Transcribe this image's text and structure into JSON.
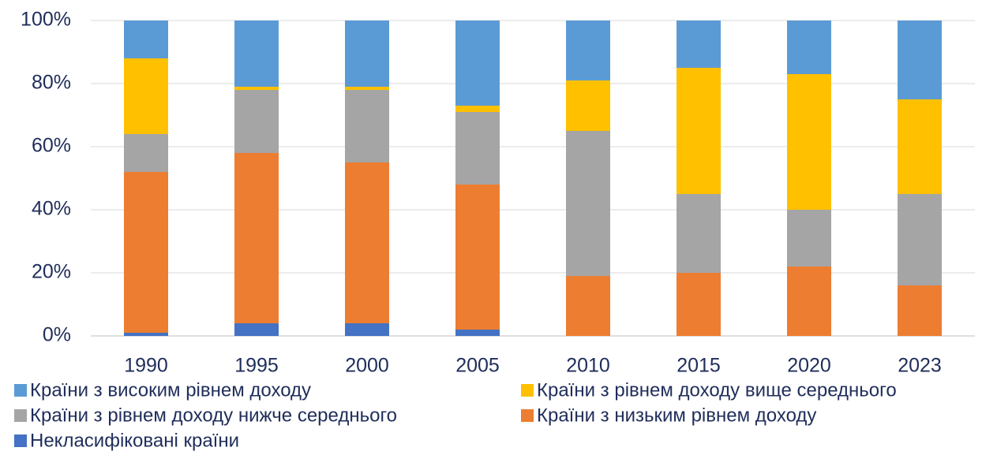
{
  "chart_data": {
    "type": "stacked_bar",
    "categories": [
      "1990",
      "1995",
      "2000",
      "2005",
      "2010",
      "2015",
      "2020",
      "2023"
    ],
    "series": [
      {
        "name": "Країни з високим рівнем доходу",
        "color": "#5b9bd5",
        "values": [
          12,
          21,
          21,
          27,
          19,
          15,
          17,
          25
        ]
      },
      {
        "name": "Країни з рівнем доходу вище середнього",
        "color": "#ffc000",
        "values": [
          24,
          1,
          1,
          2,
          16,
          40,
          43,
          30
        ]
      },
      {
        "name": "Країни з рівнем доходу нижче середнього",
        "color": "#a5a5a5",
        "values": [
          12,
          20,
          23,
          23,
          46,
          25,
          18,
          29
        ]
      },
      {
        "name": "Країни з низьким рівнем доходу",
        "color": "#ed7d31",
        "values": [
          51,
          54,
          51,
          46,
          19,
          20,
          22,
          16
        ]
      },
      {
        "name": "Некласифіковані країни",
        "color": "#4472c4",
        "values": [
          1,
          4,
          4,
          2,
          0,
          0,
          0,
          0
        ]
      }
    ],
    "ylim": [
      0,
      100
    ],
    "yticks": [
      {
        "value": 0,
        "label": "0%"
      },
      {
        "value": 20,
        "label": "20%"
      },
      {
        "value": 40,
        "label": "40%"
      },
      {
        "value": 60,
        "label": "60%"
      },
      {
        "value": 80,
        "label": "80%"
      },
      {
        "value": 100,
        "label": "100%"
      }
    ],
    "grid": true,
    "legend": "bottom"
  }
}
